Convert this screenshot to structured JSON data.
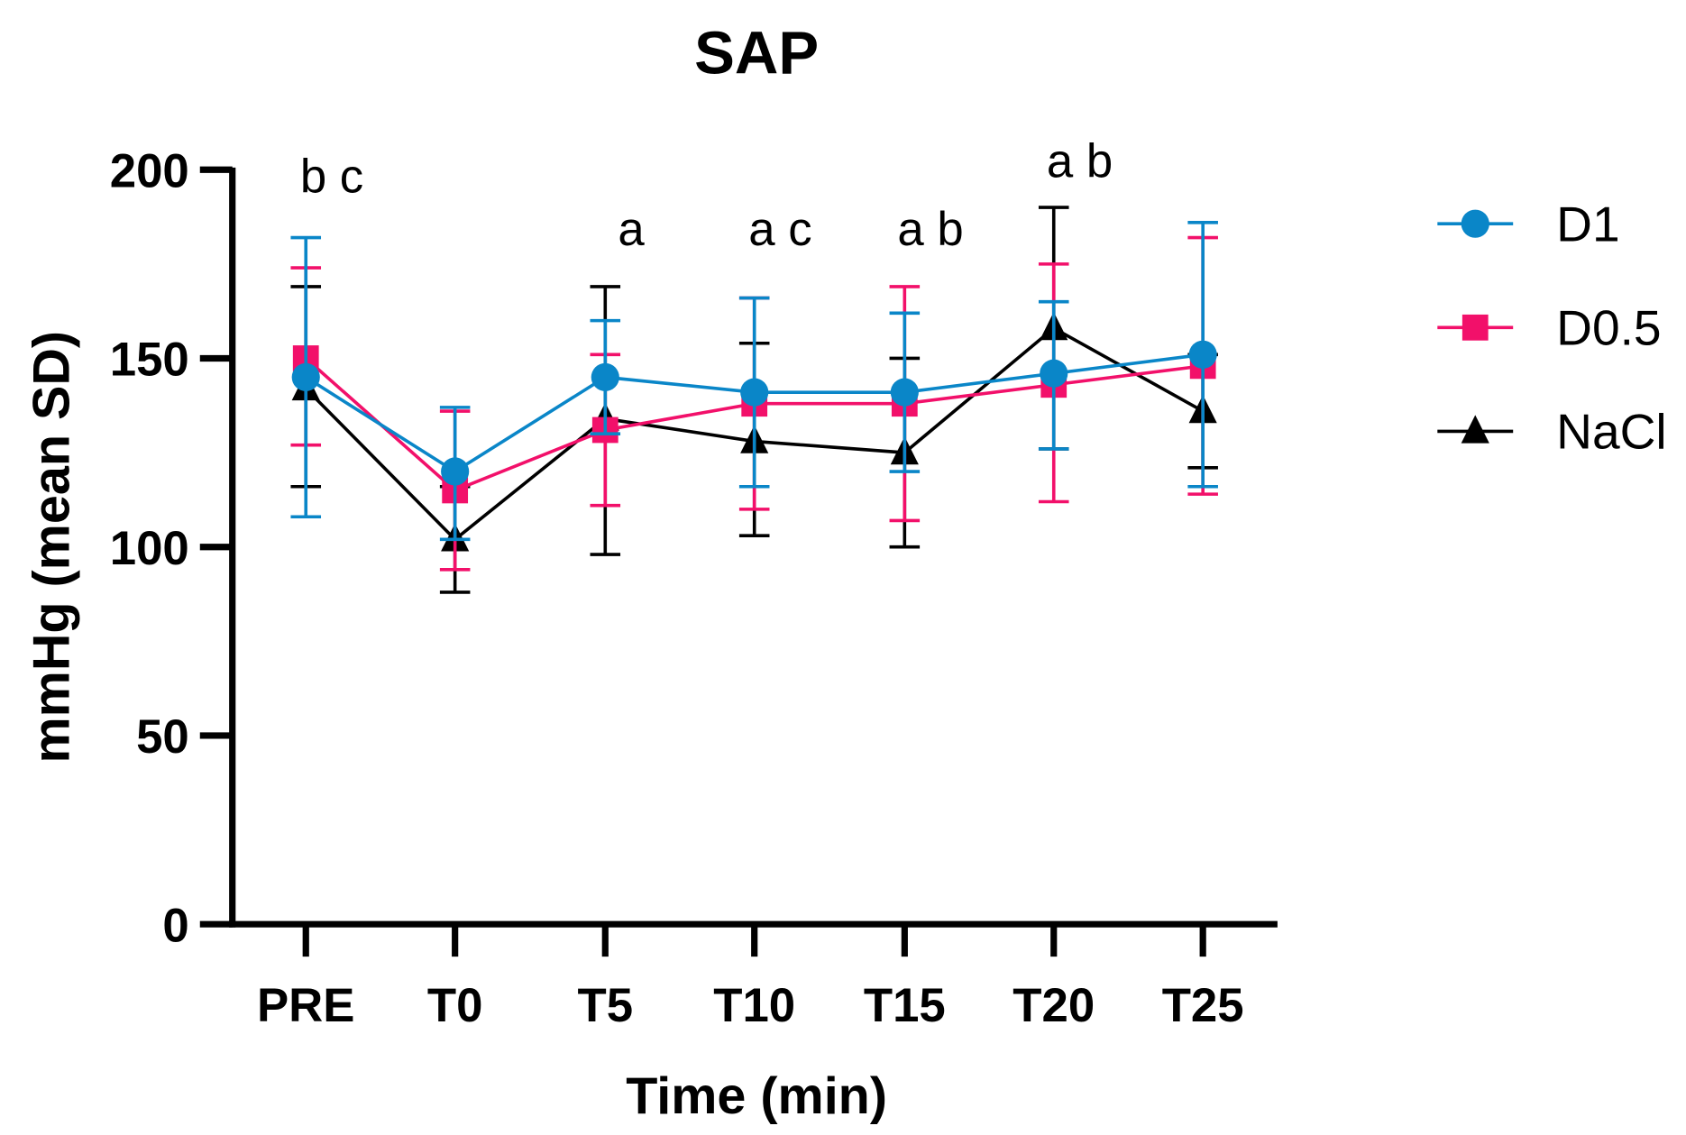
{
  "chart_data": {
    "type": "line",
    "title": "SAP",
    "xlabel": "Time (min)",
    "ylabel": "mmHg (mean SD)",
    "ylim": [
      0,
      200
    ],
    "yticks": [
      "0",
      "50",
      "100",
      "150",
      "200"
    ],
    "ytick_values": [
      0,
      50,
      100,
      150,
      200
    ],
    "categories": [
      "PRE",
      "T0",
      "T5",
      "T10",
      "T15",
      "T20",
      "T25"
    ],
    "grid": false,
    "legend_position": "right",
    "series": [
      {
        "name": "D1",
        "color": "#0a86c8",
        "marker": "circle",
        "values": [
          145,
          120,
          145,
          141,
          141,
          146,
          151
        ],
        "err_low": [
          108,
          102,
          130,
          116,
          120,
          126,
          116
        ],
        "err_high": [
          182,
          137,
          160,
          166,
          162,
          165,
          186
        ]
      },
      {
        "name": "D0.5",
        "color": "#f2106a",
        "marker": "square",
        "values": [
          150,
          115,
          131,
          138,
          138,
          143,
          148
        ],
        "err_low": [
          127,
          94,
          111,
          110,
          107,
          112,
          114
        ],
        "err_high": [
          174,
          136,
          151,
          166,
          169,
          175,
          182
        ]
      },
      {
        "name": "NaCl",
        "color": "#000000",
        "marker": "triangle",
        "values": [
          142,
          102,
          134,
          128,
          125,
          158,
          136
        ],
        "err_low": [
          116,
          88,
          98,
          103,
          100,
          126,
          121
        ],
        "err_high": [
          169,
          116,
          169,
          154,
          150,
          190,
          151
        ]
      }
    ],
    "annotations": [
      {
        "category": "PRE",
        "text": "b c",
        "value": 194
      },
      {
        "category": "T5",
        "text": "a",
        "value": 180
      },
      {
        "category": "T10",
        "text": "a c",
        "value": 180
      },
      {
        "category": "T15",
        "text": "a b",
        "value": 180
      },
      {
        "category": "T20",
        "text": "a b",
        "value": 198
      }
    ]
  }
}
